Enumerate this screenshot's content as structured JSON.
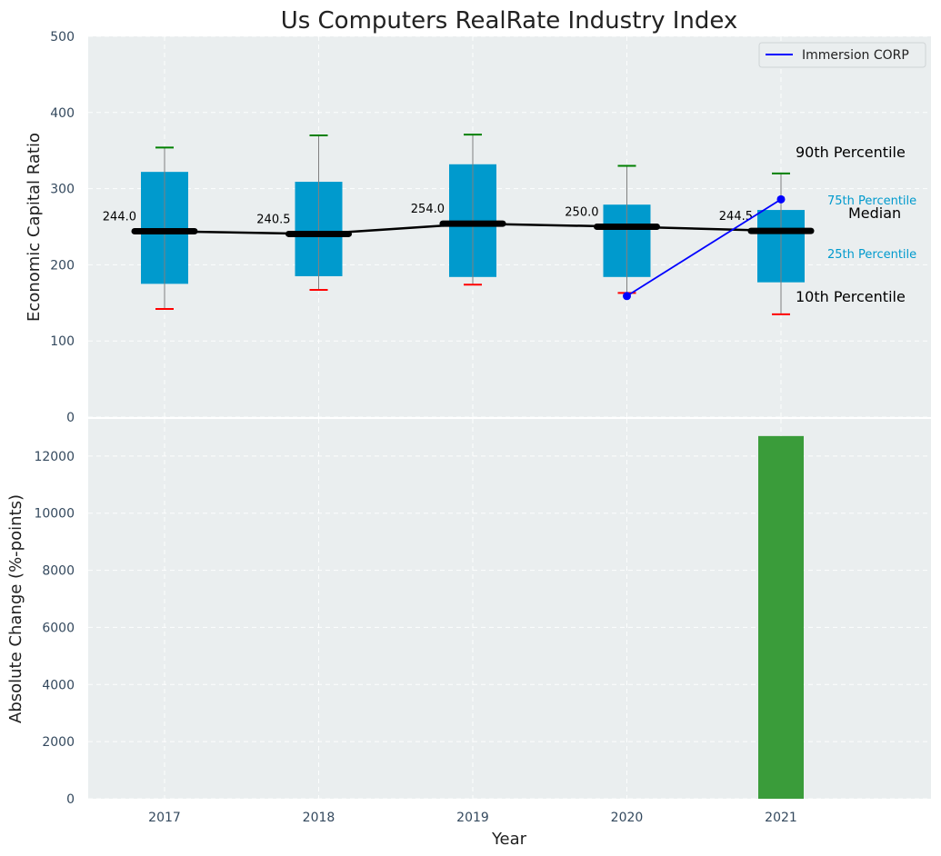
{
  "colors": {
    "panel_bg": "#eaeeef",
    "box_fill": "#009acd",
    "whisker": "#808080",
    "cap_high": "#008000",
    "cap_low": "#ff0000",
    "median_line": "#000000",
    "company_line": "#0000ff",
    "bar_fill": "#3a9c3a",
    "annot_percentile": "#009acd"
  },
  "chart_data": [
    {
      "type": "box",
      "title": "Us Computers RealRate Industry Index",
      "ylabel": "Economic Capital Ratio",
      "ylim": [
        0,
        500
      ],
      "yticks": [
        0,
        100,
        200,
        300,
        400,
        500
      ],
      "categories": [
        "2017",
        "2018",
        "2019",
        "2020",
        "2021"
      ],
      "p10": [
        142,
        167,
        174,
        163,
        135
      ],
      "p25": [
        175,
        185,
        184,
        184,
        177
      ],
      "median": [
        244.0,
        240.5,
        254.0,
        250.0,
        244.5
      ],
      "median_labels": [
        "244.0",
        "240.5",
        "254.0",
        "250.0",
        "244.5"
      ],
      "p75": [
        322,
        309,
        332,
        279,
        272
      ],
      "p90": [
        354,
        370,
        371,
        330,
        320
      ],
      "company_series": {
        "name": "Immersion CORP",
        "x": [
          "2020",
          "2021"
        ],
        "y": [
          159,
          286
        ]
      },
      "annotations": {
        "p90": "90th Percentile",
        "p75": "75th Percentile",
        "median": "Median",
        "p25": "25th Percentile",
        "p10": "10th Percentile"
      },
      "grid": true,
      "legend": "top-right"
    },
    {
      "type": "bar",
      "xlabel": "Year",
      "ylabel": "Absolute Change (%-points)",
      "ylim": [
        0,
        13300
      ],
      "yticks": [
        0,
        2000,
        4000,
        6000,
        8000,
        10000,
        12000
      ],
      "categories": [
        "2017",
        "2018",
        "2019",
        "2020",
        "2021"
      ],
      "values": [
        0,
        0,
        0,
        0,
        12700
      ],
      "grid": true
    }
  ]
}
